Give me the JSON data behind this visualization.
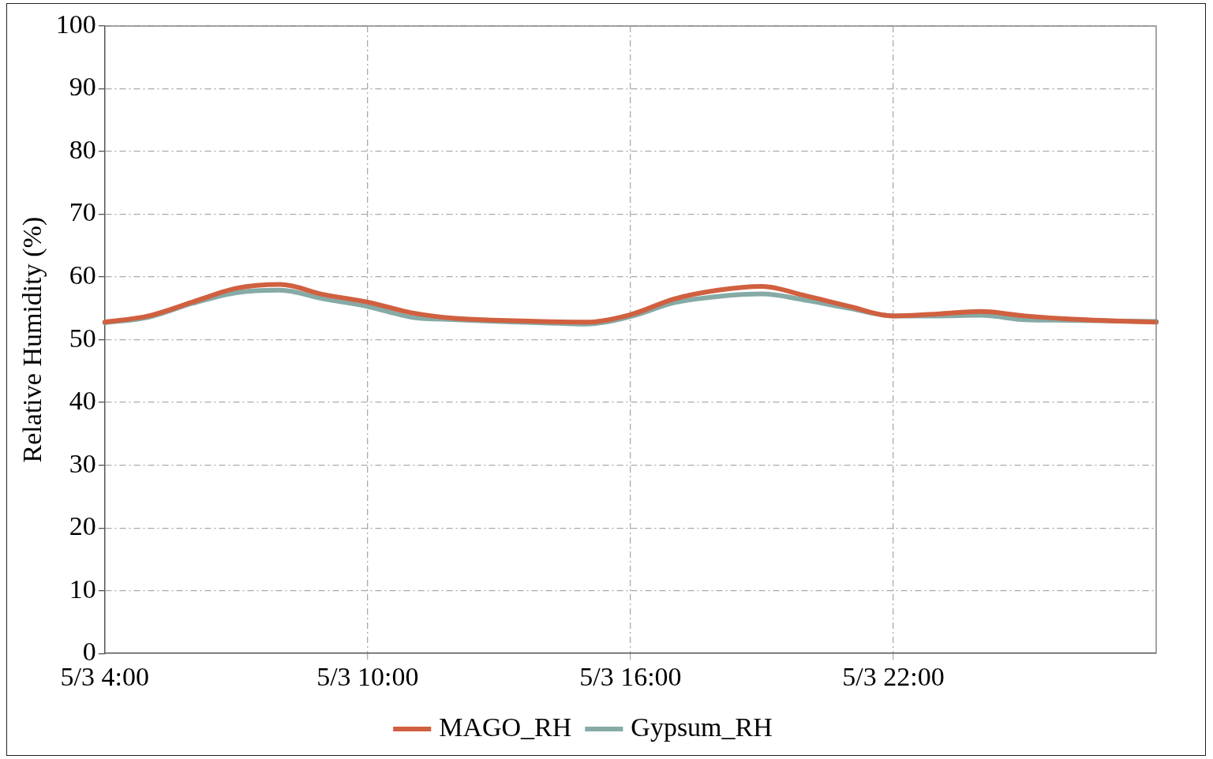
{
  "chart_data": {
    "type": "line",
    "ylabel": "Relative Humidity (%)",
    "categories": [
      "5/3 4:00",
      null,
      null,
      null,
      null,
      null,
      "5/3 10:00",
      null,
      null,
      null,
      null,
      null,
      "5/3 16:00",
      null,
      null,
      null,
      null,
      null,
      "5/3 22:00",
      null,
      null,
      null,
      null,
      null,
      null
    ],
    "series": [
      {
        "name": "MAGO_RH",
        "color": "#d0603f",
        "values": [
          52.8,
          53.8,
          56,
          58.2,
          58.8,
          57.2,
          56,
          54.3,
          53.4,
          53.1,
          52.9,
          52.8,
          54,
          56.5,
          57.9,
          58.5,
          57,
          55.3,
          53.8,
          54.1,
          54.5,
          53.8,
          53.3,
          53,
          52.8
        ]
      },
      {
        "name": "Gypsum_RH",
        "color": "#86aaa6",
        "values": [
          52.7,
          53.6,
          55.8,
          57.5,
          57.9,
          56.5,
          55.3,
          53.6,
          53.2,
          52.9,
          52.7,
          52.5,
          53.7,
          55.9,
          56.9,
          57.3,
          56.3,
          55,
          53.8,
          53.8,
          53.9,
          53.2,
          53.1,
          53,
          52.9
        ]
      }
    ],
    "ylim": [
      0,
      100
    ],
    "yticks": [
      0,
      10,
      20,
      30,
      40,
      50,
      60,
      70,
      80,
      90,
      100
    ],
    "grid": true,
    "legend": "bottom",
    "marker": "none",
    "line_style": "solid"
  }
}
